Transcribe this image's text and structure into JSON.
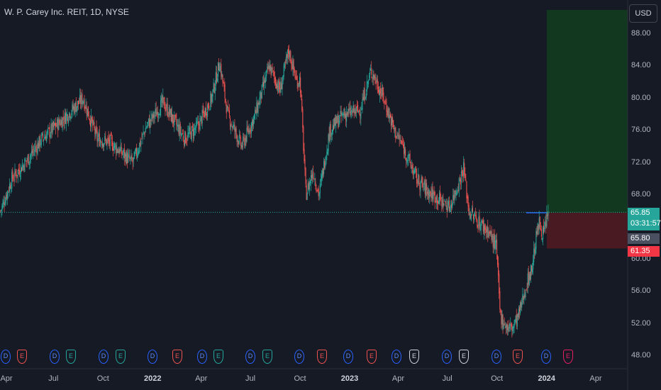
{
  "header": {
    "symbol_title": "W. P. Carey Inc. REIT, 1D, NYSE"
  },
  "currency_button": "USD",
  "colors": {
    "up": "#26a69a",
    "down": "#ef5350",
    "background": "#161a25",
    "price_line": "#26a69a",
    "dividend": "#2962ff",
    "target_zone": "#123920",
    "stop_zone": "#4a1a22"
  },
  "price_axis": {
    "ticks": [
      "88.00",
      "84.00",
      "80.00",
      "76.00",
      "72.00",
      "68.00",
      "64.00",
      "60.00",
      "56.00",
      "52.00",
      "48.00"
    ]
  },
  "time_axis": {
    "labels": [
      {
        "text": "Apr",
        "bold": false
      },
      {
        "text": "Jul",
        "bold": false
      },
      {
        "text": "Oct",
        "bold": false
      },
      {
        "text": "2022",
        "bold": true
      },
      {
        "text": "Apr",
        "bold": false
      },
      {
        "text": "Jul",
        "bold": false
      },
      {
        "text": "Oct",
        "bold": false
      },
      {
        "text": "2023",
        "bold": true
      },
      {
        "text": "Apr",
        "bold": false
      },
      {
        "text": "Jul",
        "bold": false
      },
      {
        "text": "Oct",
        "bold": false
      },
      {
        "text": "2024",
        "bold": true
      },
      {
        "text": "Apr",
        "bold": false
      }
    ]
  },
  "last_price": {
    "value": "65.85",
    "countdown": "03:31:57"
  },
  "position_tool": {
    "entry": "65.80",
    "stop": "61.35"
  },
  "events": [
    {
      "type": "D",
      "color": "#2962ff"
    },
    {
      "type": "E",
      "color": "#ef5350"
    },
    {
      "type": "D",
      "color": "#2962ff"
    },
    {
      "type": "E",
      "color": "#26a69a"
    },
    {
      "type": "D",
      "color": "#2962ff"
    },
    {
      "type": "E",
      "color": "#26a69a"
    },
    {
      "type": "D",
      "color": "#2962ff"
    },
    {
      "type": "E",
      "color": "#ef5350"
    },
    {
      "type": "D",
      "color": "#2962ff"
    },
    {
      "type": "E",
      "color": "#26a69a"
    },
    {
      "type": "D",
      "color": "#2962ff"
    },
    {
      "type": "E",
      "color": "#26a69a"
    },
    {
      "type": "D",
      "color": "#2962ff"
    },
    {
      "type": "E",
      "color": "#ef5350"
    },
    {
      "type": "D",
      "color": "#2962ff"
    },
    {
      "type": "E",
      "color": "#ef5350"
    },
    {
      "type": "D",
      "color": "#2962ff"
    },
    {
      "type": "E",
      "color": "#d1d4dc"
    },
    {
      "type": "D",
      "color": "#2962ff"
    },
    {
      "type": "E",
      "color": "#d1d4dc"
    },
    {
      "type": "D",
      "color": "#2962ff"
    },
    {
      "type": "E",
      "color": "#ef5350"
    },
    {
      "type": "D",
      "color": "#2962ff"
    },
    {
      "type": "E",
      "color": "#e91e63"
    }
  ],
  "chart_data": {
    "type": "candlestick",
    "price_range": [
      48,
      92
    ],
    "x_range": [
      "2021-04",
      "2024-04"
    ],
    "anchors": [
      [
        "2021-03-25",
        66.0
      ],
      [
        "2021-04-15",
        70.0
      ],
      [
        "2021-05-15",
        72.5
      ],
      [
        "2021-06-10",
        75.0
      ],
      [
        "2021-07-20",
        77.5
      ],
      [
        "2021-08-25",
        80.0
      ],
      [
        "2021-09-20",
        75.0
      ],
      [
        "2021-10-15",
        74.5
      ],
      [
        "2021-11-25",
        72.0
      ],
      [
        "2021-12-20",
        76.5
      ],
      [
        "2022-01-05",
        78.0
      ],
      [
        "2022-01-20",
        79.5
      ],
      [
        "2022-03-01",
        75.0
      ],
      [
        "2022-03-25",
        76.5
      ],
      [
        "2022-04-20",
        80.0
      ],
      [
        "2022-05-05",
        84.5
      ],
      [
        "2022-05-20",
        78.0
      ],
      [
        "2022-06-15",
        74.0
      ],
      [
        "2022-07-10",
        78.0
      ],
      [
        "2022-08-05",
        84.0
      ],
      [
        "2022-08-25",
        81.0
      ],
      [
        "2022-09-10",
        86.0
      ],
      [
        "2022-09-25",
        82.0
      ],
      [
        "2022-10-01",
        82.5
      ],
      [
        "2022-10-12",
        68.0
      ],
      [
        "2022-10-25",
        71.0
      ],
      [
        "2022-11-05",
        68.0
      ],
      [
        "2022-11-25",
        76.0
      ],
      [
        "2022-12-20",
        78.0
      ],
      [
        "2023-01-20",
        78.5
      ],
      [
        "2023-02-10",
        83.5
      ],
      [
        "2023-03-05",
        80.0
      ],
      [
        "2023-03-25",
        76.0
      ],
      [
        "2023-04-10",
        74.0
      ],
      [
        "2023-05-05",
        70.0
      ],
      [
        "2023-05-25",
        68.5
      ],
      [
        "2023-06-15",
        67.5
      ],
      [
        "2023-07-05",
        66.5
      ],
      [
        "2023-07-25",
        70.0
      ],
      [
        "2023-07-31",
        71.5
      ],
      [
        "2023-08-10",
        66.0
      ],
      [
        "2023-08-30",
        64.5
      ],
      [
        "2023-09-15",
        63.5
      ],
      [
        "2023-09-30",
        61.5
      ],
      [
        "2023-10-07",
        53.0
      ],
      [
        "2023-10-20",
        51.5
      ],
      [
        "2023-10-30",
        51.5
      ],
      [
        "2023-11-10",
        53.0
      ],
      [
        "2023-11-25",
        57.0
      ],
      [
        "2023-12-05",
        59.0
      ],
      [
        "2023-12-12",
        62.5
      ],
      [
        "2023-12-18",
        64.5
      ],
      [
        "2023-12-26",
        63.0
      ],
      [
        "2024-01-04",
        65.85
      ]
    ],
    "last_price": 65.85,
    "position": {
      "entry": 65.8,
      "stop": 61.35,
      "target": 92.0
    }
  }
}
